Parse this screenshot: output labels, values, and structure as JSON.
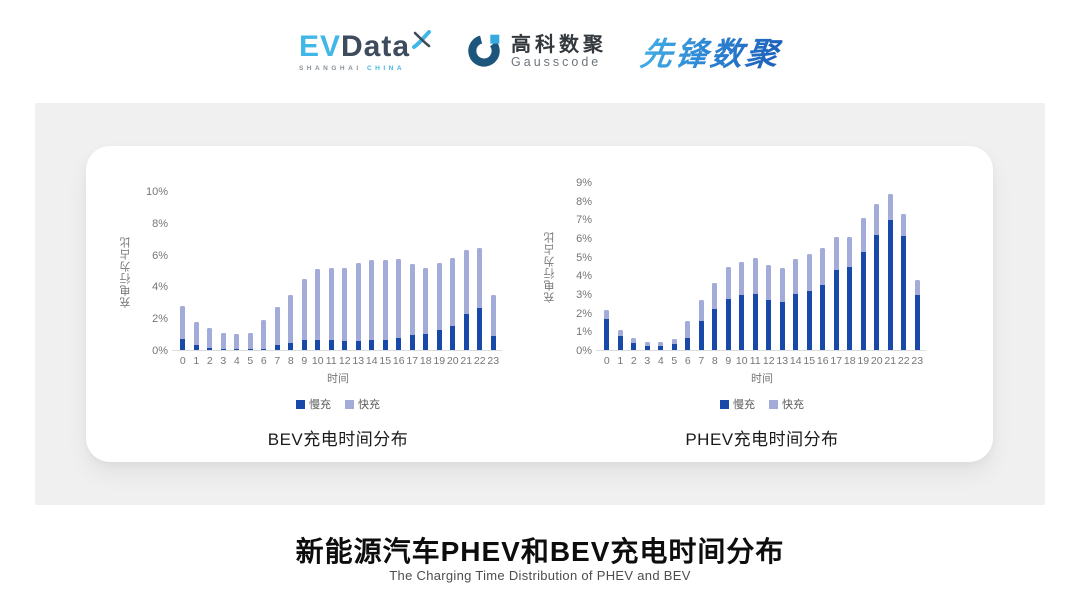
{
  "header": {
    "evdata": {
      "ev": "EV",
      "data": "Data",
      "sub_left": "SHANGHAI",
      "sub_right": "CHINA"
    },
    "gausscode": {
      "cn": "高科数聚",
      "en": "Gausscode"
    },
    "xianfeng": {
      "text": "先锋数聚"
    }
  },
  "colors": {
    "slow": "#1849a9",
    "fast": "#a3abd8",
    "evdata_lightblue": "#41b7e8",
    "evdata_dark": "#3d4b5c",
    "gausscode_dark": "#1d567c",
    "gausscode_lightblue": "#36a9e0",
    "xianfeng_blue": "#2a7fd0"
  },
  "chart_data": [
    {
      "type": "bar",
      "stacked": true,
      "title": "BEV充电时间分布",
      "xlabel": "时间",
      "ylabel": "充电行为占比",
      "ylim": [
        0,
        10
      ],
      "ytick_step": 2,
      "ytick_suffix": "%",
      "grid": false,
      "legend_position": "bottom",
      "x": [
        0,
        1,
        2,
        3,
        4,
        5,
        6,
        7,
        8,
        9,
        10,
        11,
        12,
        13,
        14,
        15,
        16,
        17,
        18,
        19,
        20,
        21,
        22,
        23
      ],
      "series": [
        {
          "name": "慢充",
          "values": [
            0.75,
            0.35,
            0.2,
            0.1,
            0.1,
            0.1,
            0.15,
            0.4,
            0.5,
            0.7,
            0.7,
            0.7,
            0.6,
            0.65,
            0.7,
            0.7,
            0.85,
            1.0,
            1.1,
            1.3,
            1.55,
            2.3,
            2.7,
            0.95
          ]
        },
        {
          "name": "快充",
          "values": [
            2.1,
            1.5,
            1.25,
            1.05,
            0.95,
            1.05,
            1.8,
            2.35,
            3.05,
            3.85,
            4.45,
            4.5,
            4.6,
            4.9,
            5.05,
            5.05,
            4.95,
            4.45,
            4.15,
            4.25,
            4.3,
            4.05,
            3.8,
            2.6
          ]
        }
      ]
    },
    {
      "type": "bar",
      "stacked": true,
      "title": "PHEV充电时间分布",
      "xlabel": "时间",
      "ylabel": "充电行为占比",
      "ylim": [
        0,
        9
      ],
      "ytick_step": 1,
      "ytick_suffix": "%",
      "grid": false,
      "legend_position": "bottom",
      "x": [
        0,
        1,
        2,
        3,
        4,
        5,
        6,
        7,
        8,
        9,
        10,
        11,
        12,
        13,
        14,
        15,
        16,
        17,
        18,
        19,
        20,
        21,
        22,
        23
      ],
      "series": [
        {
          "name": "慢充",
          "values": [
            1.7,
            0.8,
            0.45,
            0.25,
            0.25,
            0.35,
            0.7,
            1.6,
            2.25,
            2.8,
            3.0,
            3.05,
            2.75,
            2.6,
            3.05,
            3.2,
            3.55,
            4.35,
            4.5,
            5.3,
            6.2,
            7.0,
            6.15,
            3.0
          ]
        },
        {
          "name": "快充",
          "values": [
            0.5,
            0.35,
            0.25,
            0.25,
            0.25,
            0.3,
            0.9,
            1.15,
            1.4,
            1.7,
            1.75,
            1.95,
            1.85,
            1.85,
            1.9,
            2.0,
            1.95,
            1.75,
            1.6,
            1.8,
            1.7,
            1.4,
            1.2,
            0.8
          ]
        }
      ]
    }
  ],
  "footer": {
    "title": "新能源汽车PHEV和BEV充电时间分布",
    "subtitle": "The Charging Time Distribution of PHEV and BEV"
  }
}
